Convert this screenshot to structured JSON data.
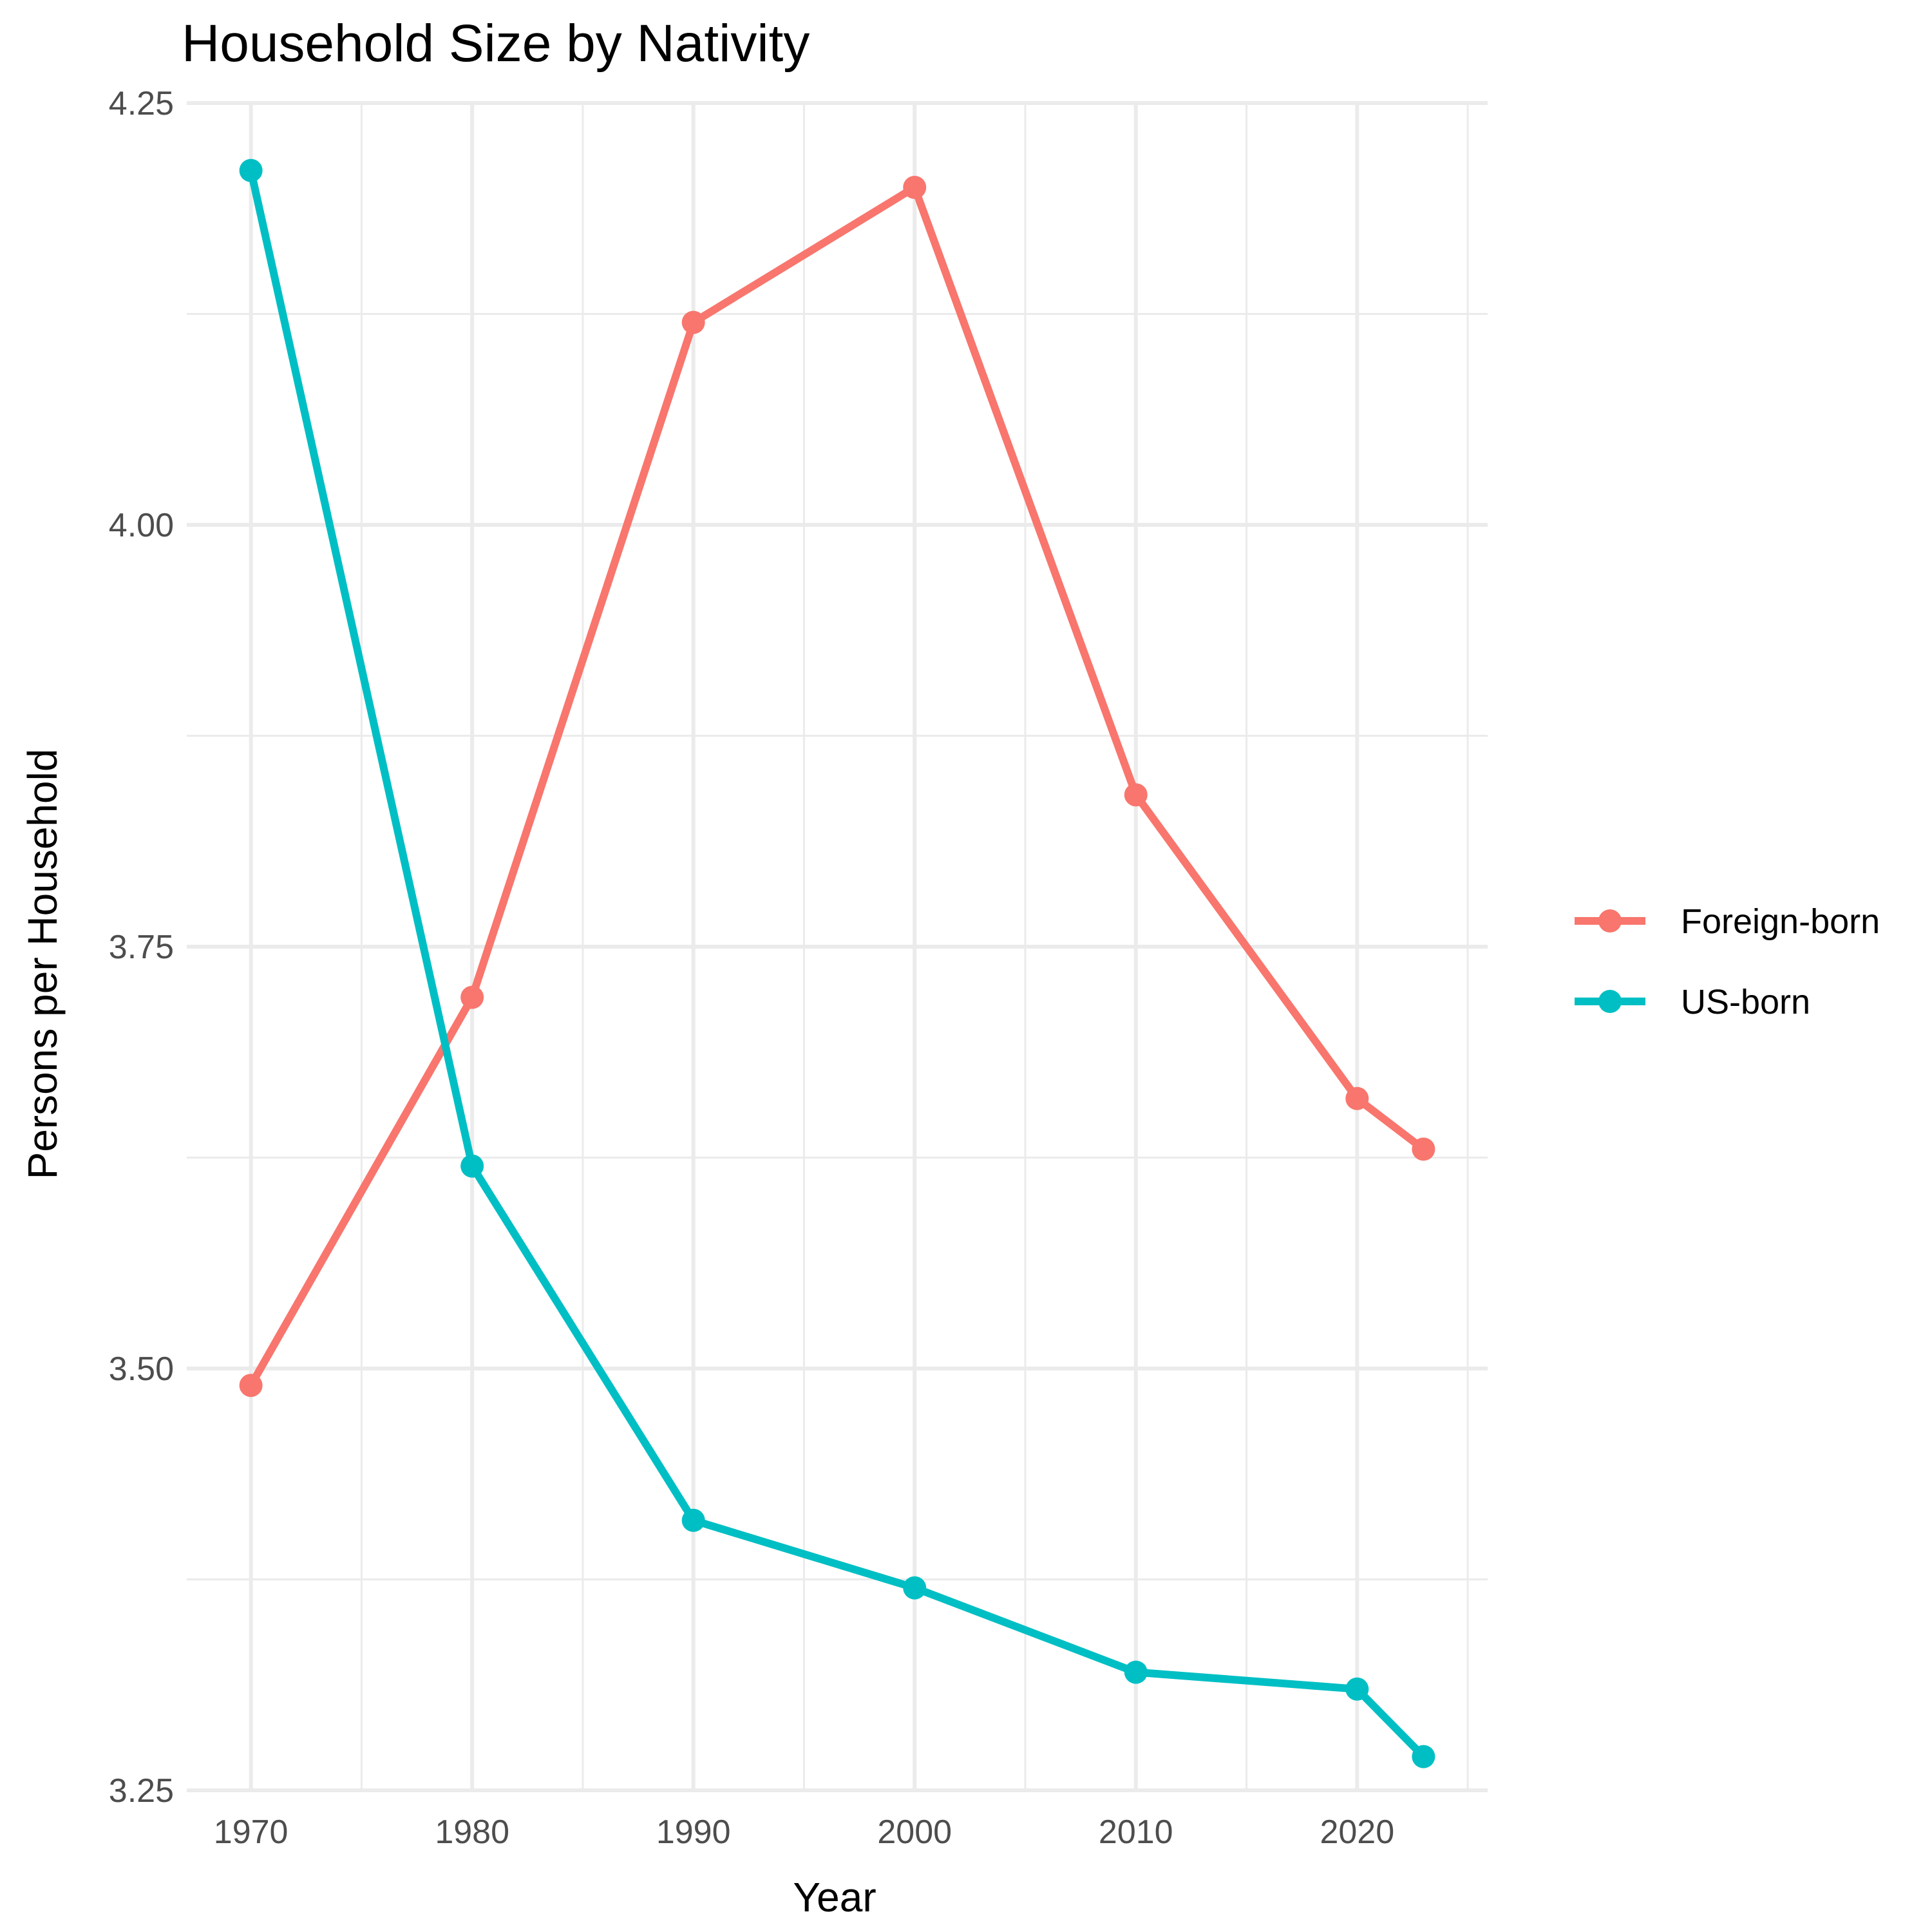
{
  "chart_data": {
    "type": "line",
    "title": "Household Size by Nativity",
    "xlabel": "Year",
    "ylabel": "Persons per Household",
    "xlim": [
      1967.1,
      2025.9
    ],
    "ylim": [
      3.25,
      4.25
    ],
    "x_ticks": [
      "1970",
      "1980",
      "1990",
      "2000",
      "2010",
      "2020"
    ],
    "y_ticks": [
      "3.25",
      "3.50",
      "3.75",
      "4.00",
      "4.25"
    ],
    "x": [
      1970,
      1980,
      1990,
      2000,
      2010,
      2020,
      2023
    ],
    "series": [
      {
        "name": "Foreign-born",
        "color": "#F8766D",
        "values": [
          3.49,
          3.72,
          4.12,
          4.2,
          3.84,
          3.66,
          3.63
        ]
      },
      {
        "name": "US-born",
        "color": "#00BFC4",
        "values": [
          4.21,
          3.62,
          3.41,
          3.37,
          3.32,
          3.31,
          3.27
        ]
      }
    ],
    "grid": true,
    "legend": "right"
  }
}
